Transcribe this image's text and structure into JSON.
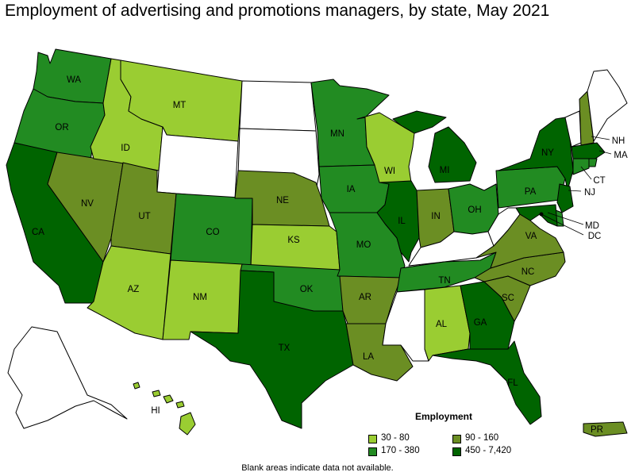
{
  "title": "Employment of advertising and promotions managers, by state, May 2021",
  "note": "Blank areas indicate data not available.",
  "legend": {
    "title": "Employment",
    "items": [
      {
        "label": "30 - 80",
        "color": "#9acd32"
      },
      {
        "label": "90 - 160",
        "color": "#6b8e23"
      },
      {
        "label": "170 - 380",
        "color": "#228b22"
      },
      {
        "label": "450 - 7,420",
        "color": "#006400"
      }
    ]
  },
  "colors": {
    "none": "#ffffff"
  },
  "states": {
    "WA": "170 - 380",
    "OR": "170 - 380",
    "CA": "450 - 7,420",
    "NV": "90 - 160",
    "ID": "30 - 80",
    "MT": "30 - 80",
    "WY": "none",
    "UT": "90 - 160",
    "AZ": "30 - 80",
    "CO": "170 - 380",
    "NM": "30 - 80",
    "ND": "none",
    "SD": "none",
    "NE": "90 - 160",
    "KS": "30 - 80",
    "OK": "170 - 380",
    "TX": "450 - 7,420",
    "MN": "170 - 380",
    "IA": "170 - 380",
    "MO": "170 - 380",
    "AR": "90 - 160",
    "LA": "90 - 160",
    "WI": "30 - 80",
    "IL": "450 - 7,420",
    "MI": "450 - 7,420",
    "IN": "90 - 160",
    "OH": "170 - 380",
    "KY": "none",
    "TN": "170 - 380",
    "MS": "none",
    "AL": "30 - 80",
    "GA": "450 - 7,420",
    "FL": "450 - 7,420",
    "SC": "90 - 160",
    "NC": "90 - 160",
    "VA": "90 - 160",
    "WV": "none",
    "PA": "170 - 380",
    "NY": "450 - 7,420",
    "VT": "none",
    "NH": "90 - 160",
    "ME": "none",
    "MA": "450 - 7,420",
    "RI": "170 - 380",
    "CT": "170 - 380",
    "NJ": "450 - 7,420",
    "DE": "170 - 380",
    "MD": "450 - 7,420",
    "DC": "450 - 7,420",
    "AK": "none",
    "HI": "30 - 80",
    "PR": "90 - 160"
  },
  "labels": {
    "WA": "WA",
    "OR": "OR",
    "CA": "CA",
    "NV": "NV",
    "ID": "ID",
    "MT": "MT",
    "UT": "UT",
    "AZ": "AZ",
    "CO": "CO",
    "NM": "NM",
    "NE": "NE",
    "KS": "KS",
    "OK": "OK",
    "TX": "TX",
    "MN": "MN",
    "IA": "IA",
    "MO": "MO",
    "AR": "AR",
    "LA": "LA",
    "WI": "WI",
    "IL": "IL",
    "MI": "MI",
    "IN": "IN",
    "OH": "OH",
    "TN": "TN",
    "AL": "AL",
    "GA": "GA",
    "FL": "FL",
    "SC": "SC",
    "NC": "NC",
    "VA": "VA",
    "PA": "PA",
    "NY": "NY",
    "NH": "NH",
    "MA": "MA",
    "CT": "CT",
    "NJ": "NJ",
    "MD": "MD",
    "DC": "DC",
    "HI": "HI",
    "PR": "PR"
  }
}
